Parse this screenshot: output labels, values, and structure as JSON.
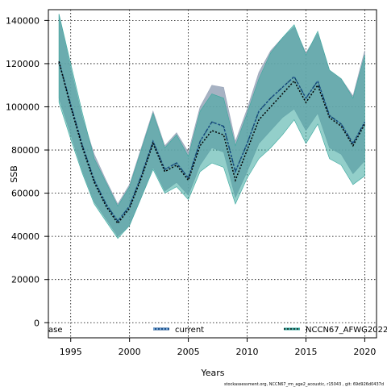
{
  "chart_data": {
    "type": "line",
    "xlabel": "Years",
    "ylabel": "SSB",
    "xlim": [
      1993.1,
      2021.0
    ],
    "ylim": [
      -7000,
      145000
    ],
    "xticks": [
      1995,
      2000,
      2005,
      2010,
      2015,
      2020
    ],
    "yticks": [
      0,
      20000,
      40000,
      60000,
      80000,
      100000,
      120000,
      140000
    ],
    "grid": true,
    "legend_position": "bottom",
    "footer": "stockassessment.org, NCCN67_rm_age2_acoustic, r15043 , git: 69d926d0437d",
    "x": [
      1994,
      1995,
      1996,
      1997,
      1998,
      1999,
      2000,
      2001,
      2002,
      2003,
      2004,
      2005,
      2006,
      2007,
      2008,
      2009,
      2010,
      2011,
      2012,
      2013,
      2014,
      2015,
      2016,
      2017,
      2018,
      2019,
      2020
    ],
    "series": [
      {
        "name": "ase",
        "color": "#98a4b8",
        "values": [
          121000,
          101000,
          82000,
          66000,
          55000,
          47000,
          54000,
          68000,
          84000,
          71000,
          74000,
          67000,
          84000,
          93000,
          91000,
          70000,
          83000,
          98000,
          104000,
          109000,
          114000,
          104000,
          112000,
          96000,
          92000,
          83000,
          93000
        ],
        "lower": [
          104000,
          87000,
          70000,
          56000,
          48000,
          40000,
          45000,
          58000,
          72000,
          61000,
          65000,
          59000,
          73000,
          81000,
          79000,
          58000,
          70000,
          83000,
          89000,
          95000,
          99000,
          89000,
          97000,
          81000,
          78000,
          69000,
          75000
        ],
        "upper": [
          143000,
          118000,
          95000,
          78000,
          66000,
          55000,
          64000,
          81000,
          98000,
          82000,
          88000,
          79000,
          100000,
          110000,
          109000,
          84000,
          99000,
          116000,
          126000,
          132000,
          137000,
          125000,
          134000,
          117000,
          113000,
          105000,
          126000
        ]
      },
      {
        "name": "current",
        "color": "#1a4f8a",
        "values": [
          121000,
          101000,
          82000,
          66000,
          55000,
          47000,
          54000,
          68000,
          84000,
          71000,
          74000,
          67000,
          84000,
          93000,
          91000,
          70000,
          83000,
          98000,
          104000,
          109000,
          114000,
          104000,
          112000,
          96000,
          92000,
          83000,
          93000
        ]
      },
      {
        "name": "NCCN67_AFWG2022",
        "color": "#3aa89e",
        "values": [
          121000,
          100000,
          81000,
          65000,
          54000,
          46000,
          53000,
          67000,
          83000,
          70000,
          73000,
          66000,
          82000,
          89000,
          87000,
          66000,
          80000,
          94000,
          100000,
          106000,
          112000,
          102000,
          110000,
          95000,
          91000,
          82000,
          92000
        ],
        "lower": [
          102000,
          85000,
          69000,
          55000,
          47000,
          39000,
          45000,
          58000,
          71000,
          60000,
          63000,
          57000,
          70000,
          74000,
          72000,
          55000,
          67000,
          76000,
          81000,
          87000,
          94000,
          83000,
          92000,
          76000,
          73000,
          64000,
          68000
        ],
        "upper": [
          143000,
          120000,
          97000,
          76000,
          65000,
          54000,
          63000,
          80000,
          97000,
          81000,
          87000,
          77000,
          98000,
          106000,
          104000,
          82000,
          97000,
          113000,
          125000,
          132000,
          138000,
          124000,
          135000,
          117000,
          113000,
          104000,
          124000
        ]
      }
    ]
  }
}
